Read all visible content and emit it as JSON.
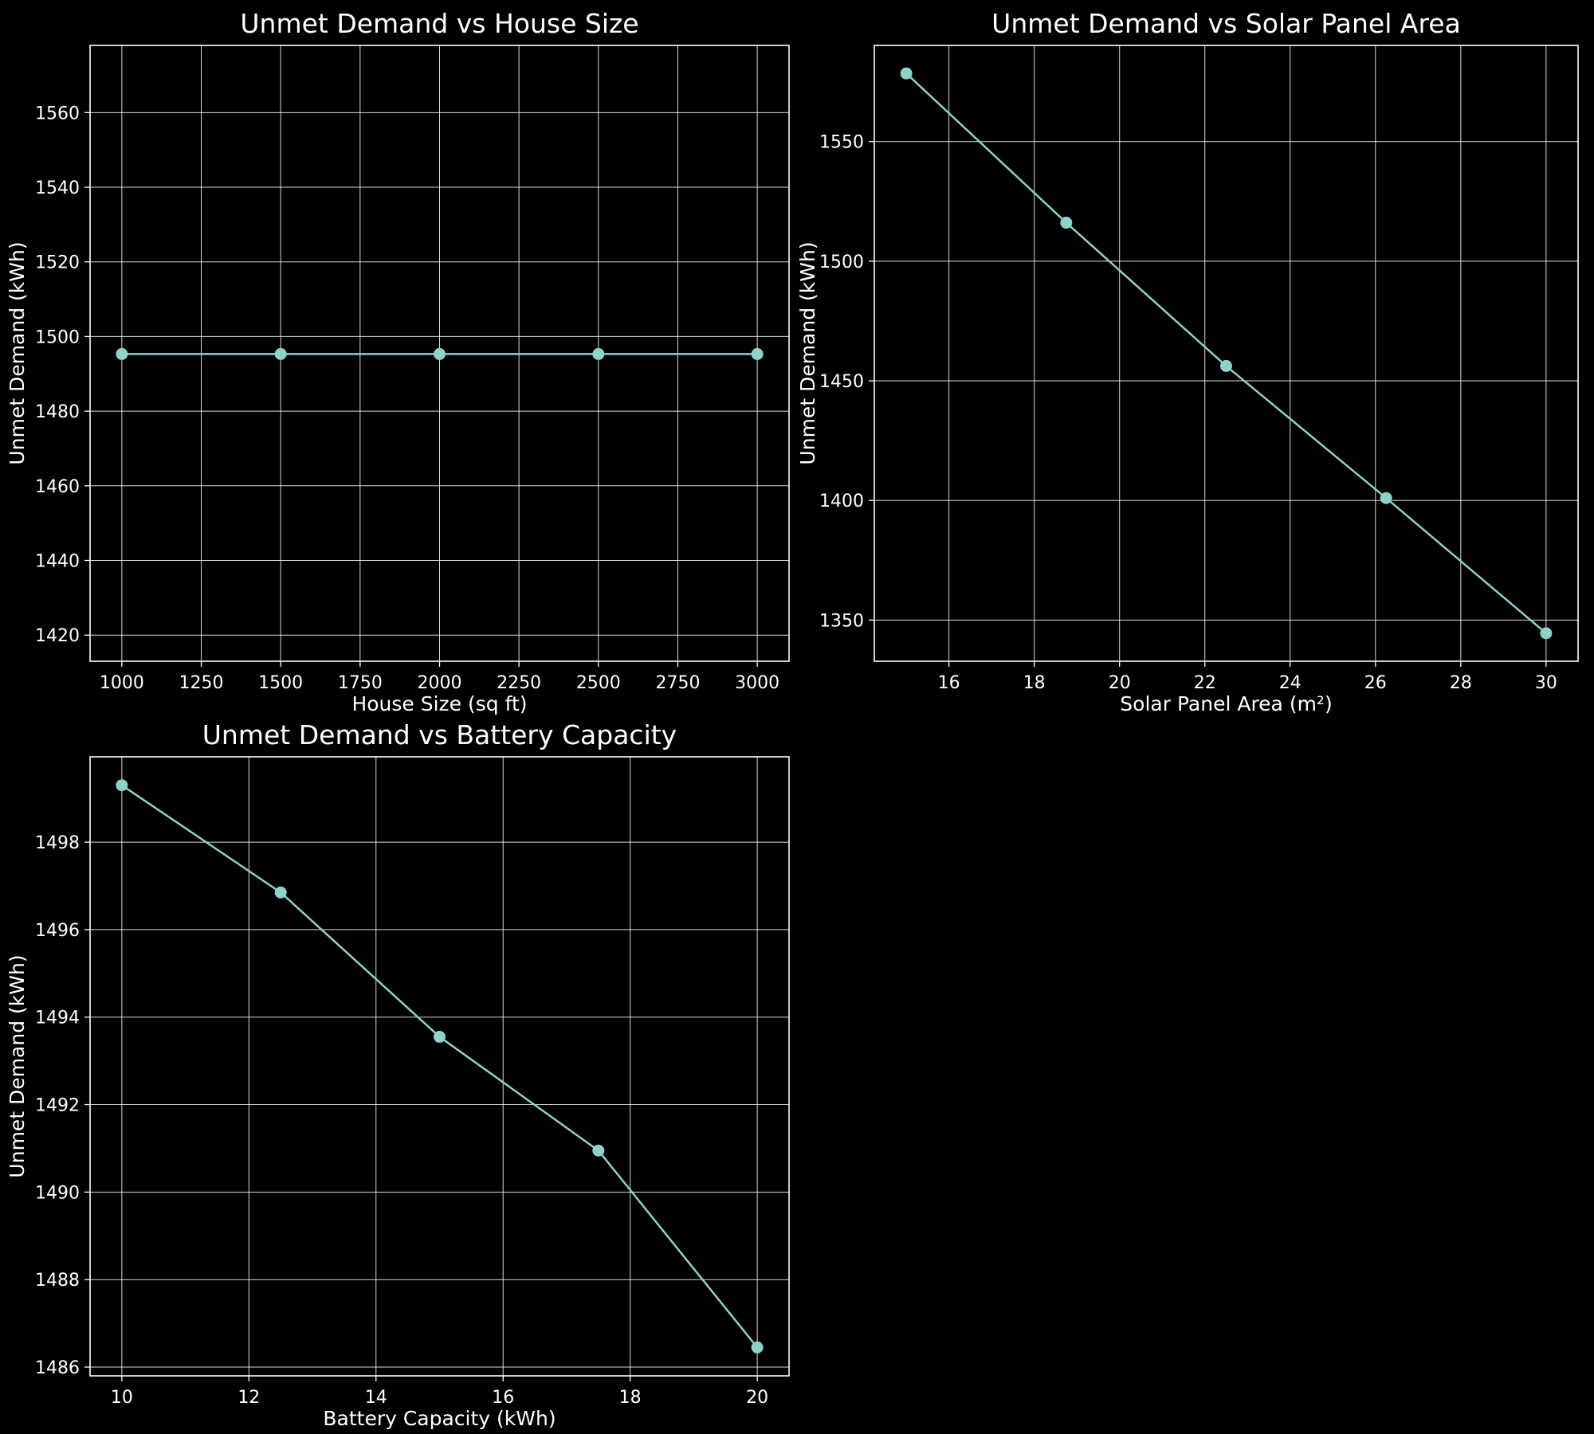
{
  "figure": {
    "background": "#000000",
    "text_color": "#ffffff",
    "grid_color": "#ffffff",
    "spine_color": "#ffffff",
    "series_color": "#8dd3c7"
  },
  "chart_data": [
    {
      "type": "line",
      "title": "Unmet Demand vs House Size",
      "xlabel": "House Size (sq ft)",
      "ylabel": "Unmet Demand (kWh)",
      "x": [
        1000,
        1500,
        2000,
        2500,
        3000
      ],
      "y": [
        1495.3,
        1495.3,
        1495.3,
        1495.3,
        1495.3
      ],
      "xlim": [
        900,
        3100
      ],
      "ylim": [
        1413,
        1578
      ],
      "xticks": [
        1000,
        1250,
        1500,
        1750,
        2000,
        2250,
        2500,
        2750,
        3000
      ],
      "yticks": [
        1420,
        1440,
        1460,
        1480,
        1500,
        1520,
        1540,
        1560
      ],
      "grid": true,
      "legend": "none",
      "marker": "circle"
    },
    {
      "type": "line",
      "title": "Unmet Demand vs Solar Panel Area",
      "xlabel": "Solar Panel Area (m²)",
      "ylabel": "Unmet Demand (kWh)",
      "x": [
        15,
        18.75,
        22.5,
        26.25,
        30
      ],
      "y": [
        1578.5,
        1516.1,
        1456.2,
        1401.0,
        1344.5
      ],
      "xlim": [
        14.25,
        30.75
      ],
      "ylim": [
        1332.8,
        1590.2
      ],
      "xticks": [
        16,
        18,
        20,
        22,
        24,
        26,
        28,
        30
      ],
      "yticks": [
        1350,
        1400,
        1450,
        1500,
        1550
      ],
      "grid": true,
      "legend": "none",
      "marker": "circle"
    },
    {
      "type": "line",
      "title": "Unmet Demand vs Battery Capacity",
      "xlabel": "Battery Capacity (kWh)",
      "ylabel": "Unmet Demand (kWh)",
      "x": [
        10,
        12.5,
        15,
        17.5,
        20
      ],
      "y": [
        1499.3,
        1496.85,
        1493.55,
        1490.95,
        1486.45
      ],
      "xlim": [
        9.5,
        20.5
      ],
      "ylim": [
        1485.8,
        1499.95
      ],
      "xticks": [
        10,
        12,
        14,
        16,
        18,
        20
      ],
      "yticks": [
        1486,
        1488,
        1490,
        1492,
        1494,
        1496,
        1498
      ],
      "grid": true,
      "legend": "none",
      "marker": "circle"
    }
  ]
}
